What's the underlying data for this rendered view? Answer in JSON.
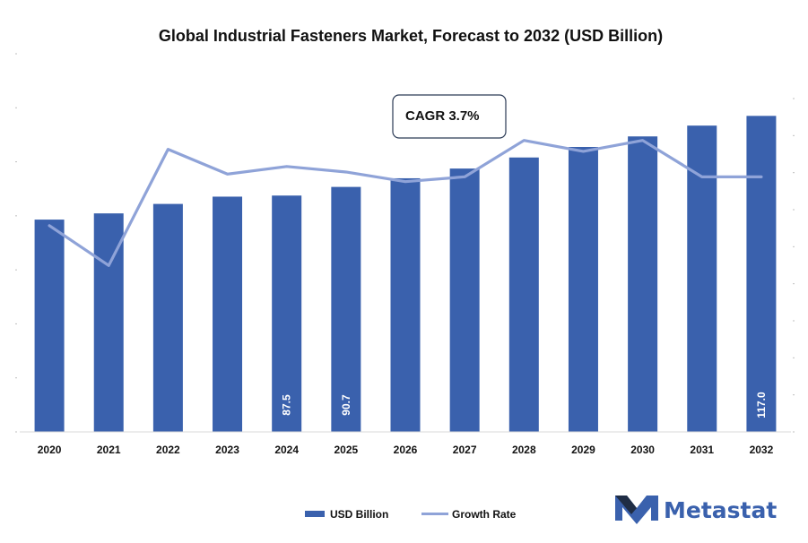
{
  "chart_data": {
    "type": "bar",
    "title": "Global Industrial Fasteners Market, Forecast to 2032 (USD Billion)",
    "categories": [
      "2020",
      "2021",
      "2022",
      "2023",
      "2024",
      "2025",
      "2026",
      "2027",
      "2028",
      "2029",
      "2030",
      "2031",
      "2032"
    ],
    "series": [
      {
        "name": "USD Billion",
        "type": "bar",
        "values": [
          78.6,
          80.9,
          84.4,
          87.1,
          87.5,
          90.7,
          93.9,
          97.5,
          101.6,
          105.5,
          109.4,
          113.4,
          117.0
        ],
        "data_labels": [
          "",
          "",
          "",
          "",
          "87.5",
          "90.7",
          "",
          "",
          "",
          "",
          "",
          "",
          "117.0"
        ]
      },
      {
        "name": "Growth Rate",
        "type": "line",
        "values": [
          3.0,
          2.42,
          4.11,
          3.75,
          3.86,
          3.78,
          3.64,
          3.71,
          4.24,
          4.08,
          4.24,
          3.71,
          3.71
        ]
      }
    ],
    "ylim": [
      0,
      140
    ],
    "y2lim": [
      0,
      5.5
    ],
    "grid": false,
    "legend": "bottom-center",
    "annotations": [
      "CAGR 3.7%"
    ],
    "colors": {
      "bar": "#3a61ad",
      "line": "#8fa3d8"
    }
  },
  "brand": {
    "name": "Metastat",
    "color": "#3a61ad",
    "icon": "metastat-m-logo-icon"
  }
}
